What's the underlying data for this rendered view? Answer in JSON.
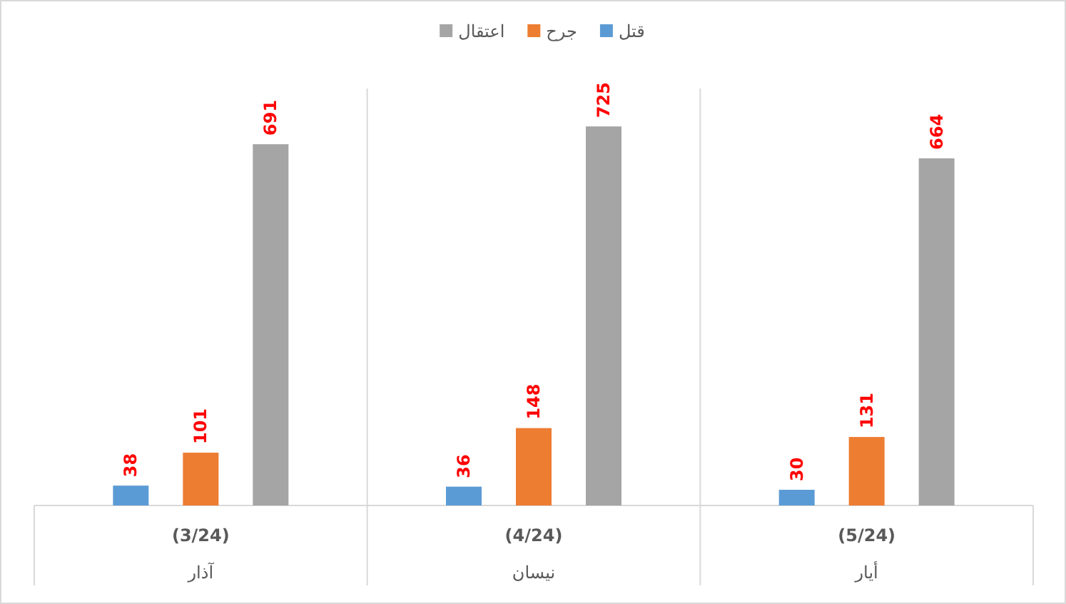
{
  "chart_data": {
    "type": "bar",
    "categories": [
      "(3/24)\nآذار",
      "(4/24)\nنيسان",
      "(5/24)\nأيار"
    ],
    "series": [
      {
        "name": "قتل",
        "color": "#5b9bd5",
        "values": [
          38,
          36,
          30
        ]
      },
      {
        "name": "جرح",
        "color": "#ed7d31",
        "values": [
          101,
          148,
          131
        ]
      },
      {
        "name": "اعتقال",
        "color": "#a5a5a5",
        "values": [
          691,
          725,
          664
        ]
      }
    ],
    "data_labels": true,
    "legend": "top",
    "grid": false
  }
}
